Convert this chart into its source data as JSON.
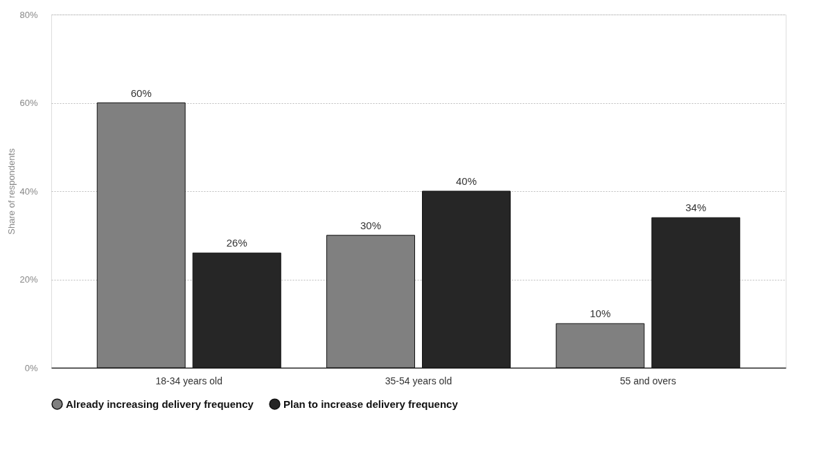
{
  "chart_data": {
    "type": "bar",
    "ylabel": "Share of respondents",
    "categories": [
      "18-34 years old",
      "35-54 years old",
      "55 and overs"
    ],
    "series": [
      {
        "name": "Already increasing delivery frequency",
        "color": "#808080",
        "values": [
          60,
          30,
          10
        ],
        "value_labels": [
          "60%",
          "30%",
          "10%"
        ]
      },
      {
        "name": "Plan to increase delivery frequency",
        "color": "#262626",
        "values": [
          26,
          40,
          34
        ],
        "value_labels": [
          "26%",
          "40%",
          "34%"
        ]
      }
    ],
    "ylim": [
      0,
      80
    ],
    "yticks": [
      {
        "value": 0,
        "label": "0%"
      },
      {
        "value": 20,
        "label": "20%"
      },
      {
        "value": 40,
        "label": "40%"
      },
      {
        "value": 60,
        "label": "60%"
      },
      {
        "value": 80,
        "label": "80%"
      }
    ],
    "grid": "y",
    "legend": "bottom"
  }
}
